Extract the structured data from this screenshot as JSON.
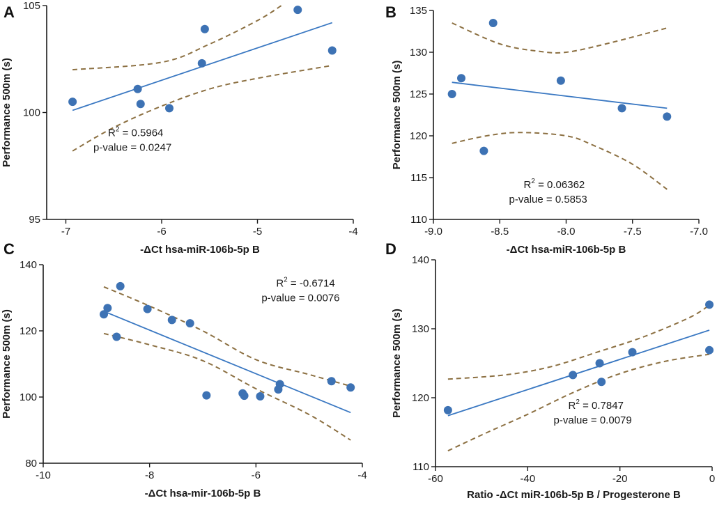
{
  "colors": {
    "point": "#3d72b4",
    "fit_line": "#3a78c2",
    "ci_band": "#8c7042",
    "axis": "#1a1a1a"
  },
  "chart_data": [
    {
      "panel": "A",
      "type": "scatter",
      "xlabel": "-ΔCt hsa-miR-106b-5p B",
      "ylabel": "Performance 500m (s)",
      "xlim": [
        -7.2,
        -4
      ],
      "ylim": [
        95,
        105
      ],
      "xticks": [
        -7,
        -6,
        -5,
        -4
      ],
      "yticks": [
        95,
        100,
        105
      ],
      "xtick_labels": [
        "-7",
        "-6",
        "-5",
        "-4"
      ],
      "ytick_labels": [
        "95",
        "100",
        "105"
      ],
      "points": [
        [
          -6.93,
          100.5
        ],
        [
          -6.25,
          101.1
        ],
        [
          -6.22,
          100.4
        ],
        [
          -5.92,
          100.2
        ],
        [
          -5.58,
          102.3
        ],
        [
          -5.55,
          103.9
        ],
        [
          -4.58,
          104.8
        ],
        [
          -4.22,
          102.9
        ]
      ],
      "fit": {
        "x": [
          -6.93,
          -4.22
        ],
        "y": [
          100.1,
          104.2
        ]
      },
      "ci_upper": [
        [
          -6.93,
          102.0
        ],
        [
          -6.0,
          102.35
        ],
        [
          -5.5,
          103.2
        ],
        [
          -5.0,
          104.3
        ],
        [
          -4.75,
          105.0
        ]
      ],
      "ci_lower": [
        [
          -6.93,
          98.2
        ],
        [
          -6.5,
          99.3
        ],
        [
          -6.0,
          100.3
        ],
        [
          -5.5,
          101.1
        ],
        [
          -5.0,
          101.6
        ],
        [
          -4.22,
          102.2
        ]
      ],
      "annotation": {
        "r2_prefix": "R",
        "r2_sup": "2",
        "r2_value": " = 0.5964",
        "p_text": "p-value = 0.0247"
      }
    },
    {
      "panel": "B",
      "type": "scatter",
      "xlabel": "-ΔCt hsa-miR-106b-5p B",
      "ylabel": "Performance 500m (s)",
      "xlim": [
        -9,
        -7
      ],
      "ylim": [
        110,
        135
      ],
      "xticks": [
        -9,
        -8.5,
        -8,
        -7.5,
        -7
      ],
      "yticks": [
        110,
        115,
        120,
        125,
        130,
        135
      ],
      "xtick_labels": [
        "-9.0",
        "-8.5",
        "-8.0",
        "-7.5",
        "-7.0"
      ],
      "ytick_labels": [
        "110",
        "115",
        "120",
        "125",
        "130",
        "135"
      ],
      "points": [
        [
          -8.86,
          125.0
        ],
        [
          -8.79,
          126.9
        ],
        [
          -8.62,
          118.2
        ],
        [
          -8.55,
          133.5
        ],
        [
          -8.04,
          126.6
        ],
        [
          -7.58,
          123.3
        ],
        [
          -7.24,
          122.3
        ]
      ],
      "fit": {
        "x": [
          -8.86,
          -7.24
        ],
        "y": [
          126.4,
          123.3
        ]
      },
      "ci_upper": [
        [
          -8.86,
          133.5
        ],
        [
          -8.5,
          131.0
        ],
        [
          -8.2,
          130.1
        ],
        [
          -8.0,
          130.0
        ],
        [
          -7.7,
          131.0
        ],
        [
          -7.24,
          132.9
        ]
      ],
      "ci_lower": [
        [
          -8.86,
          119.1
        ],
        [
          -8.6,
          120.0
        ],
        [
          -8.35,
          120.4
        ],
        [
          -8.0,
          120.0
        ],
        [
          -7.8,
          118.9
        ],
        [
          -7.5,
          116.6
        ],
        [
          -7.24,
          113.6
        ]
      ],
      "annotation": {
        "r2_prefix": "R",
        "r2_sup": "2",
        "r2_value": " = 0.06362",
        "p_text": "p-value = 0.5853"
      }
    },
    {
      "panel": "C",
      "type": "scatter",
      "xlabel": "-ΔCt hsa-mir-106b-5p B",
      "ylabel": "Performance 500m (s)",
      "xlim": [
        -10,
        -4
      ],
      "ylim": [
        80,
        140
      ],
      "xticks": [
        -10,
        -8,
        -6,
        -4
      ],
      "yticks": [
        80,
        100,
        120,
        140
      ],
      "xtick_labels": [
        "-10",
        "-8",
        "-6",
        "-4"
      ],
      "ytick_labels": [
        "80",
        "100",
        "120",
        "140"
      ],
      "points": [
        [
          -8.86,
          125.0
        ],
        [
          -8.79,
          126.9
        ],
        [
          -8.62,
          118.2
        ],
        [
          -8.55,
          133.5
        ],
        [
          -8.04,
          126.6
        ],
        [
          -7.58,
          123.3
        ],
        [
          -7.24,
          122.3
        ],
        [
          -6.93,
          100.5
        ],
        [
          -6.25,
          101.1
        ],
        [
          -6.22,
          100.4
        ],
        [
          -5.92,
          100.2
        ],
        [
          -5.58,
          102.3
        ],
        [
          -5.55,
          103.9
        ],
        [
          -4.58,
          104.8
        ],
        [
          -4.22,
          102.9
        ]
      ],
      "fit": {
        "x": [
          -8.86,
          -4.22
        ],
        "y": [
          125.9,
          95.3
        ]
      },
      "ci_upper": [
        [
          -8.86,
          133.3
        ],
        [
          -8.0,
          127.5
        ],
        [
          -7.0,
          120.0
        ],
        [
          -6.0,
          111.3
        ],
        [
          -5.0,
          106.8
        ],
        [
          -4.22,
          103.3
        ]
      ],
      "ci_lower": [
        [
          -8.86,
          119.2
        ],
        [
          -8.0,
          115.8
        ],
        [
          -7.0,
          111.0
        ],
        [
          -6.0,
          102.5
        ],
        [
          -5.0,
          94.7
        ],
        [
          -4.22,
          87.0
        ]
      ],
      "annotation": {
        "r2_prefix": "R",
        "r2_sup": "2",
        "r2_value": " = -0.6714",
        "p_text": "p-value = 0.0076"
      }
    },
    {
      "panel": "D",
      "type": "scatter",
      "xlabel": "Ratio -ΔCt miR-106b-5p B / Progesterone B",
      "ylabel": "Performance 500m (s)",
      "xlim": [
        -60,
        0
      ],
      "ylim": [
        110,
        140
      ],
      "xticks": [
        -60,
        -40,
        -20,
        0
      ],
      "yticks": [
        110,
        120,
        130,
        140
      ],
      "xtick_labels": [
        "-60",
        "-40",
        "-20",
        "0"
      ],
      "ytick_labels": [
        "110",
        "120",
        "130",
        "140"
      ],
      "points": [
        [
          -57.3,
          118.2
        ],
        [
          -30.2,
          123.3
        ],
        [
          -24.4,
          125.0
        ],
        [
          -24.0,
          122.3
        ],
        [
          -17.3,
          126.6
        ],
        [
          -0.6,
          133.5
        ],
        [
          -0.6,
          126.9
        ]
      ],
      "fit": {
        "x": [
          -57.3,
          -0.6
        ],
        "y": [
          117.4,
          129.8
        ]
      },
      "ci_upper": [
        [
          -57.3,
          122.7
        ],
        [
          -45.0,
          123.3
        ],
        [
          -35.0,
          124.5
        ],
        [
          -25.0,
          126.6
        ],
        [
          -15.0,
          128.8
        ],
        [
          -5.0,
          131.6
        ],
        [
          -0.6,
          133.4
        ]
      ],
      "ci_lower": [
        [
          -57.3,
          112.3
        ],
        [
          -50.0,
          114.6
        ],
        [
          -40.0,
          117.6
        ],
        [
          -30.0,
          120.8
        ],
        [
          -20.0,
          123.5
        ],
        [
          -10.0,
          125.3
        ],
        [
          -0.6,
          126.3
        ]
      ],
      "annotation": {
        "r2_prefix": "R",
        "r2_sup": "2",
        "r2_value": " = 0.7847",
        "p_text": "p-value = 0.0079"
      }
    }
  ]
}
